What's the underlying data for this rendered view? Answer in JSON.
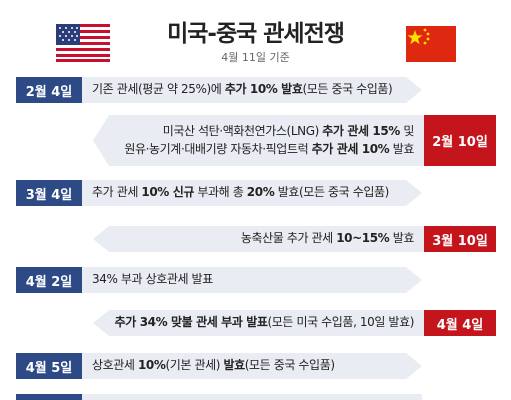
{
  "header": {
    "title": "미국-중국 관세전쟁",
    "subtitle": "4월 11일 기준"
  },
  "colors": {
    "us_date": "#2d4a86",
    "cn_date": "#c4151c",
    "band": "#e9edf3"
  },
  "events": [
    {
      "date": "2월 4일",
      "side": "us",
      "parts": [
        "기존 관세(평균 약 25%)에 ",
        "추가 10% 발효",
        "(모든 중국 수입품)"
      ]
    },
    {
      "date": "2월 10일",
      "side": "cn",
      "line1": [
        "미국산 석탄·액화천연가스(LNG) ",
        "추가 관세 15%",
        " 및"
      ],
      "line2": [
        "원유·농기계·대배기량 자동차·픽업트럭 ",
        "추가 관세 10%",
        " 발효"
      ]
    },
    {
      "date": "3월 4일",
      "side": "us",
      "parts": [
        "추가 관세 ",
        "10% 신규",
        " 부과해 총 ",
        "20%",
        " 발효(모든 중국 수입품)"
      ]
    },
    {
      "date": "3월 10일",
      "side": "cn",
      "parts": [
        "농축산물 추가 관세 ",
        "10~15%",
        " 발효"
      ]
    },
    {
      "date": "4월 2일",
      "side": "us",
      "parts": [
        "34% 부과 상호관세 발표"
      ]
    },
    {
      "date": "4월 4일",
      "side": "cn",
      "parts": [
        "추가 34% 맞불 관세 부과 발표",
        "(모든 미국 수입품, 10일 발효)"
      ]
    },
    {
      "date": "4월 5일",
      "side": "us",
      "parts": [
        "상호관세 ",
        "10%",
        "(기본 관세) ",
        "발효",
        "(모든 중국 수입품)"
      ]
    }
  ]
}
